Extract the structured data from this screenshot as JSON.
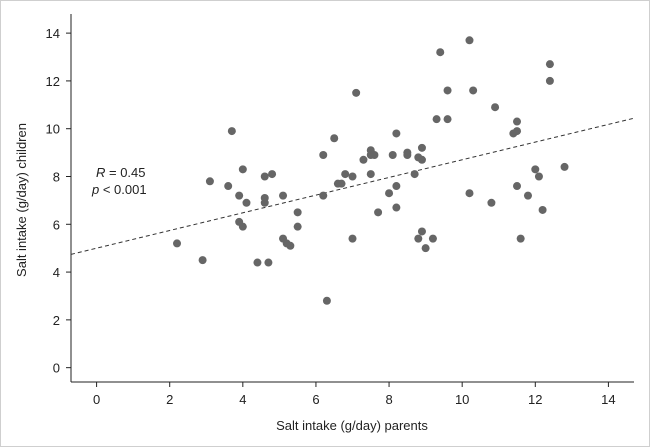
{
  "chart_data": {
    "type": "scatter",
    "xlabel": "Salt intake (g/day) parents",
    "ylabel": "Salt intake (g/day) children",
    "xlim": [
      -0.7,
      14.7
    ],
    "ylim": [
      -0.6,
      14.8
    ],
    "xticks": [
      0,
      2,
      4,
      6,
      8,
      10,
      12,
      14
    ],
    "yticks": [
      0,
      2,
      4,
      6,
      8,
      10,
      12,
      14
    ],
    "grid": false,
    "annotation": {
      "r_label": "R",
      "r_value": " = 0.45",
      "p_label": "p",
      "p_value": " < 0.001"
    },
    "regression_line": {
      "intercept": 5.0,
      "slope": 0.37,
      "style": "dashed"
    },
    "marker_color": "#666666",
    "points": [
      [
        2.2,
        5.2
      ],
      [
        2.9,
        4.5
      ],
      [
        3.1,
        7.8
      ],
      [
        3.6,
        7.6
      ],
      [
        3.7,
        9.9
      ],
      [
        3.9,
        7.2
      ],
      [
        3.9,
        6.1
      ],
      [
        4.0,
        8.3
      ],
      [
        4.0,
        5.9
      ],
      [
        4.1,
        6.9
      ],
      [
        4.4,
        4.4
      ],
      [
        4.6,
        8.0
      ],
      [
        4.6,
        7.1
      ],
      [
        4.6,
        6.9
      ],
      [
        4.7,
        4.4
      ],
      [
        4.8,
        8.1
      ],
      [
        5.1,
        7.2
      ],
      [
        5.1,
        5.4
      ],
      [
        5.2,
        5.2
      ],
      [
        5.3,
        5.1
      ],
      [
        5.5,
        6.5
      ],
      [
        5.5,
        5.9
      ],
      [
        6.2,
        8.9
      ],
      [
        6.2,
        7.2
      ],
      [
        6.3,
        2.8
      ],
      [
        6.5,
        9.6
      ],
      [
        6.6,
        7.7
      ],
      [
        6.7,
        7.7
      ],
      [
        6.8,
        8.1
      ],
      [
        7.0,
        8.0
      ],
      [
        7.0,
        5.4
      ],
      [
        7.1,
        11.5
      ],
      [
        7.3,
        8.7
      ],
      [
        7.5,
        9.1
      ],
      [
        7.5,
        8.9
      ],
      [
        7.5,
        8.1
      ],
      [
        7.6,
        8.9
      ],
      [
        7.7,
        6.5
      ],
      [
        8.0,
        7.3
      ],
      [
        8.1,
        8.9
      ],
      [
        8.2,
        9.8
      ],
      [
        8.2,
        7.6
      ],
      [
        8.2,
        6.7
      ],
      [
        8.5,
        9.0
      ],
      [
        8.5,
        8.9
      ],
      [
        8.7,
        8.1
      ],
      [
        8.8,
        8.8
      ],
      [
        8.8,
        5.4
      ],
      [
        8.9,
        9.2
      ],
      [
        8.9,
        5.7
      ],
      [
        8.9,
        8.7
      ],
      [
        9.0,
        5.0
      ],
      [
        9.2,
        5.4
      ],
      [
        9.3,
        10.4
      ],
      [
        9.4,
        13.2
      ],
      [
        9.6,
        11.6
      ],
      [
        9.6,
        10.4
      ],
      [
        10.2,
        13.7
      ],
      [
        10.2,
        7.3
      ],
      [
        10.3,
        11.6
      ],
      [
        10.8,
        6.9
      ],
      [
        10.9,
        10.9
      ],
      [
        11.4,
        9.8
      ],
      [
        11.5,
        10.3
      ],
      [
        11.5,
        9.9
      ],
      [
        11.5,
        7.6
      ],
      [
        11.6,
        5.4
      ],
      [
        11.8,
        7.2
      ],
      [
        12.0,
        8.3
      ],
      [
        12.1,
        8.0
      ],
      [
        12.2,
        6.6
      ],
      [
        12.4,
        12.7
      ],
      [
        12.4,
        12.0
      ],
      [
        12.8,
        8.4
      ]
    ]
  }
}
